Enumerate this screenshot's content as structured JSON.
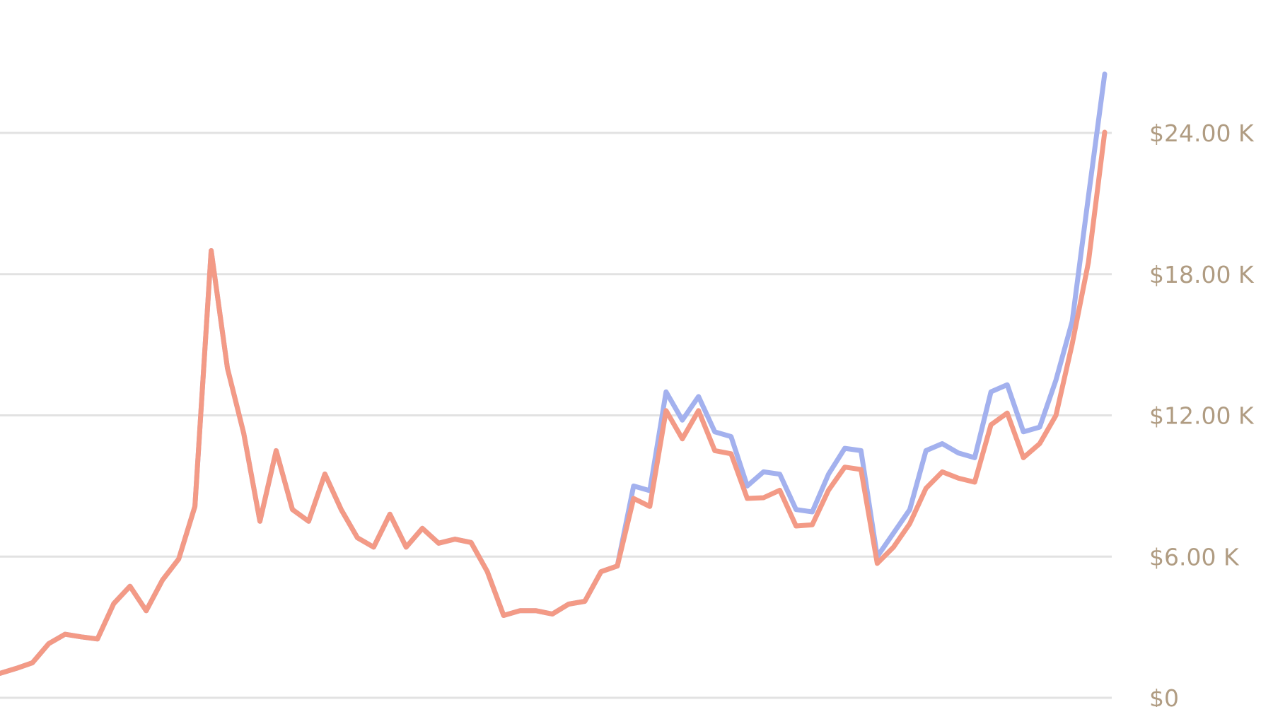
{
  "chart_data": {
    "type": "line",
    "title": "",
    "xlabel": "",
    "ylabel": "",
    "ylim": [
      0,
      27000
    ],
    "grid": true,
    "y_ticks": [
      {
        "value": 0,
        "label": "$0"
      },
      {
        "value": 6000,
        "label": "$6.00 K"
      },
      {
        "value": 12000,
        "label": "$12.00 K"
      },
      {
        "value": 18000,
        "label": "$18.00 K"
      },
      {
        "value": 24000,
        "label": "$24.00 K"
      }
    ],
    "y_axis_position": "right",
    "series": [
      {
        "color": "#a3b1ee",
        "values": [
          1040,
          1250,
          1490,
          2300,
          2700,
          2590,
          2500,
          4000,
          4740,
          3700,
          5000,
          5900,
          8130,
          19000,
          14000,
          11240,
          7500,
          10500,
          8000,
          7500,
          9510,
          8000,
          6800,
          6400,
          7800,
          6400,
          7200,
          6570,
          6740,
          6600,
          5360,
          3500,
          3700,
          3700,
          3560,
          3980,
          4100,
          5360,
          5600,
          9000,
          8800,
          13000,
          11800,
          12800,
          11300,
          11100,
          9000,
          9600,
          9500,
          8000,
          7900,
          9500,
          10600,
          10500,
          6000,
          7000,
          8000,
          10500,
          10800,
          10400,
          10200,
          13000,
          13300,
          11300,
          11500,
          13500,
          16000,
          21300,
          26500
        ]
      },
      {
        "color": "#f39a86",
        "values": [
          1040,
          1250,
          1490,
          2300,
          2700,
          2590,
          2500,
          4000,
          4740,
          3700,
          5000,
          5900,
          8130,
          19000,
          14000,
          11240,
          7500,
          10500,
          8000,
          7500,
          9510,
          8000,
          6800,
          6400,
          7800,
          6400,
          7200,
          6570,
          6740,
          6600,
          5360,
          3500,
          3700,
          3700,
          3560,
          3980,
          4100,
          5360,
          5600,
          8470,
          8130,
          12200,
          11000,
          12200,
          10500,
          10370,
          8470,
          8500,
          8820,
          7300,
          7350,
          8820,
          9800,
          9700,
          5710,
          6400,
          7400,
          8900,
          9600,
          9330,
          9160,
          11600,
          12100,
          10200,
          10800,
          12000,
          15040,
          18500,
          24030
        ]
      }
    ]
  }
}
